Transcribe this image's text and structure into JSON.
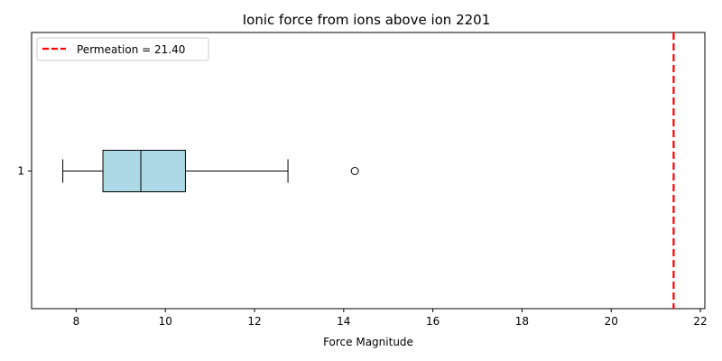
{
  "chart_data": {
    "type": "boxplot",
    "title": "Ionic force from ions above ion 2201",
    "xlabel": "Force Magnitude",
    "ylabel": "",
    "xlim": [
      7.0,
      22.1
    ],
    "orientation": "horizontal",
    "x_ticks": [
      8,
      10,
      12,
      14,
      16,
      18,
      20,
      22
    ],
    "y_ticks": [
      "1"
    ],
    "boxes": [
      {
        "category": "1",
        "whisker_low": 7.7,
        "q1": 8.6,
        "median": 9.45,
        "q3": 10.45,
        "whisker_high": 12.75,
        "outliers": [
          14.25
        ],
        "fill_color": "#add8e6"
      }
    ],
    "reference_line": {
      "label": "Permeation = 21.40",
      "value": 21.4,
      "color": "#ff0000",
      "style": "dashed"
    },
    "legend_position": "top-left",
    "grid": false
  }
}
